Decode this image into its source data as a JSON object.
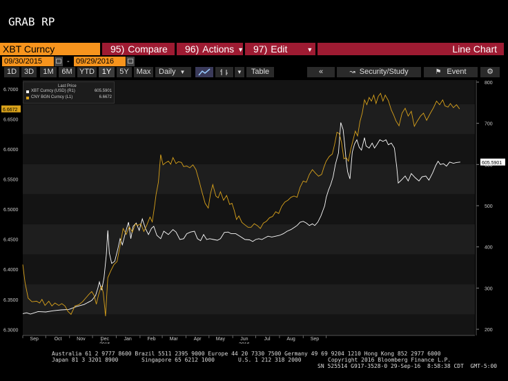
{
  "title": "GRAB RP",
  "command_bar": {
    "ticker": "XBT Curncy",
    "compare_num": "95)",
    "compare": "Compare",
    "actions_num": "96)",
    "actions": "Actions",
    "edit_num": "97)",
    "edit": "Edit",
    "chart_type": "Line Chart"
  },
  "dates": {
    "start": "09/30/2015",
    "separator": "-",
    "end": "09/29/2016"
  },
  "toolbar": {
    "periods": [
      "1D",
      "3D",
      "1M",
      "6M",
      "YTD",
      "1Y",
      "5Y",
      "Max"
    ],
    "selected_period": "1Y",
    "frequency": "Daily",
    "table": "Table",
    "security_study": "Security/Study",
    "event": "Event"
  },
  "legend": {
    "header": "Last Price",
    "series": [
      {
        "name": "XBT Curncy (USD)  (R1)",
        "value": "605.5901",
        "color": "#ffffff"
      },
      {
        "name": "CNY BGN Curncy  (L1)",
        "value": "6.6672",
        "color": "#d9a21b"
      }
    ]
  },
  "chart_data": {
    "type": "line",
    "x_months": [
      "Sep",
      "Oct",
      "Nov",
      "Dec",
      "Jan",
      "Feb",
      "Mar",
      "Apr",
      "May",
      "Jun",
      "Jul",
      "Aug",
      "Sep"
    ],
    "x_years": [
      "2015",
      "2016"
    ],
    "left_axis": {
      "ticks": [
        "6.3000",
        "6.3500",
        "6.4000",
        "6.4500",
        "6.5000",
        "6.5500",
        "6.6000",
        "6.6500",
        "6.7000"
      ],
      "ylim": [
        6.29,
        6.715
      ],
      "last_label": "6.6672"
    },
    "right_axis": {
      "ticks": [
        "200",
        "300",
        "400",
        "500",
        "600",
        "700",
        "800"
      ],
      "ylim": [
        185,
        805
      ],
      "last_label": "605.5901"
    },
    "series": [
      {
        "name": "XBT Curncy (USD)",
        "axis": "right",
        "color": "#ffffff",
        "values": [
          [
            0,
            238
          ],
          [
            5,
            240
          ],
          [
            10,
            237
          ],
          [
            20,
            243
          ],
          [
            30,
            242
          ],
          [
            40,
            245
          ],
          [
            50,
            247
          ],
          [
            60,
            248
          ],
          [
            70,
            255
          ],
          [
            80,
            260
          ],
          [
            90,
            270
          ],
          [
            95,
            282
          ],
          [
            98,
            300
          ],
          [
            100,
            315
          ],
          [
            103,
            295
          ],
          [
            106,
            325
          ],
          [
            109,
            380
          ],
          [
            111,
            440
          ],
          [
            113,
            385
          ],
          [
            116,
            360
          ],
          [
            120,
            365
          ],
          [
            124,
            395
          ],
          [
            127,
            420
          ],
          [
            130,
            405
          ],
          [
            134,
            435
          ],
          [
            138,
            460
          ],
          [
            141,
            420
          ],
          [
            144,
            450
          ],
          [
            148,
            458
          ],
          [
            152,
            440
          ],
          [
            156,
            468
          ],
          [
            160,
            445
          ],
          [
            164,
            430
          ],
          [
            168,
            445
          ],
          [
            171,
            450
          ],
          [
            175,
            428
          ],
          [
            180,
            420
          ],
          [
            184,
            438
          ],
          [
            190,
            430
          ],
          [
            196,
            442
          ],
          [
            200,
            436
          ],
          [
            205,
            418
          ],
          [
            210,
            420
          ],
          [
            214,
            432
          ],
          [
            219,
            436
          ],
          [
            224,
            438
          ],
          [
            228,
            420
          ],
          [
            232,
            415
          ],
          [
            236,
            430
          ],
          [
            240,
            418
          ],
          [
            244,
            420
          ],
          [
            249,
            418
          ],
          [
            254,
            416
          ],
          [
            258,
            420
          ],
          [
            263,
            435
          ],
          [
            268,
            436
          ],
          [
            272,
            432
          ],
          [
            278,
            432
          ],
          [
            284,
            425
          ],
          [
            290,
            418
          ],
          [
            296,
            417
          ],
          [
            300,
            413
          ],
          [
            304,
            418
          ],
          [
            308,
            420
          ],
          [
            312,
            418
          ],
          [
            316,
            422
          ],
          [
            320,
            426
          ],
          [
            325,
            424
          ],
          [
            330,
            426
          ],
          [
            335,
            428
          ],
          [
            340,
            432
          ],
          [
            345,
            438
          ],
          [
            350,
            442
          ],
          [
            355,
            448
          ],
          [
            358,
            452
          ],
          [
            362,
            460
          ],
          [
            366,
            462
          ],
          [
            370,
            458
          ],
          [
            374,
            452
          ],
          [
            378,
            456
          ],
          [
            381,
            452
          ],
          [
            385,
            460
          ],
          [
            389,
            475
          ],
          [
            392,
            490
          ],
          [
            394,
            500
          ],
          [
            396,
            520
          ],
          [
            399,
            538
          ],
          [
            402,
            552
          ],
          [
            405,
            570
          ],
          [
            408,
            600
          ],
          [
            412,
            628
          ],
          [
            415,
            702
          ],
          [
            418,
            685
          ],
          [
            420,
            650
          ],
          [
            422,
            610
          ],
          [
            424,
            582
          ],
          [
            427,
            565
          ],
          [
            430,
            630
          ],
          [
            433,
            650
          ],
          [
            436,
            660
          ],
          [
            439,
            642
          ],
          [
            442,
            635
          ],
          [
            446,
            665
          ],
          [
            448,
            645
          ],
          [
            452,
            640
          ],
          [
            456,
            652
          ],
          [
            459,
            640
          ],
          [
            462,
            648
          ],
          [
            466,
            660
          ],
          [
            470,
            656
          ],
          [
            474,
            660
          ],
          [
            477,
            648
          ],
          [
            481,
            652
          ],
          [
            485,
            640
          ],
          [
            488,
            594
          ],
          [
            490,
            555
          ],
          [
            494,
            562
          ],
          [
            499,
            572
          ],
          [
            503,
            560
          ],
          [
            507,
            578
          ],
          [
            512,
            568
          ],
          [
            517,
            560
          ],
          [
            521,
            570
          ],
          [
            526,
            572
          ],
          [
            530,
            562
          ],
          [
            535,
            580
          ],
          [
            539,
            598
          ],
          [
            542,
            608
          ],
          [
            545,
            600
          ],
          [
            549,
            602
          ],
          [
            553,
            596
          ],
          [
            557,
            606
          ],
          [
            562,
            603
          ],
          [
            566,
            605
          ],
          [
            571,
            606
          ]
        ]
      },
      {
        "name": "CNY BGN Curncy",
        "axis": "left",
        "color": "#d9a21b",
        "values": [
          [
            0,
            6.408
          ],
          [
            3,
            6.378
          ],
          [
            7,
            6.352
          ],
          [
            12,
            6.346
          ],
          [
            18,
            6.347
          ],
          [
            22,
            6.344
          ],
          [
            25,
            6.35
          ],
          [
            29,
            6.34
          ],
          [
            34,
            6.347
          ],
          [
            38,
            6.339
          ],
          [
            42,
            6.344
          ],
          [
            47,
            6.34
          ],
          [
            51,
            6.343
          ],
          [
            55,
            6.339
          ],
          [
            59,
            6.33
          ],
          [
            63,
            6.325
          ],
          [
            68,
            6.339
          ],
          [
            73,
            6.341
          ],
          [
            78,
            6.346
          ],
          [
            82,
            6.352
          ],
          [
            86,
            6.358
          ],
          [
            90,
            6.363
          ],
          [
            93,
            6.357
          ],
          [
            96,
            6.342
          ],
          [
            99,
            6.358
          ],
          [
            101,
            6.366
          ],
          [
            103,
            6.372
          ],
          [
            105,
            6.361
          ],
          [
            108,
            6.322
          ],
          [
            111,
            6.386
          ],
          [
            115,
            6.398
          ],
          [
            119,
            6.408
          ],
          [
            123,
            6.413
          ],
          [
            127,
            6.44
          ],
          [
            131,
            6.468
          ],
          [
            135,
            6.458
          ],
          [
            139,
            6.471
          ],
          [
            143,
            6.462
          ],
          [
            147,
            6.476
          ],
          [
            150,
            6.473
          ],
          [
            154,
            6.476
          ],
          [
            158,
            6.463
          ],
          [
            162,
            6.474
          ],
          [
            166,
            6.487
          ],
          [
            169,
            6.479
          ],
          [
            172,
            6.505
          ],
          [
            174,
            6.525
          ],
          [
            177,
            6.545
          ],
          [
            180,
            6.591
          ],
          [
            183,
            6.574
          ],
          [
            186,
            6.577
          ],
          [
            190,
            6.58
          ],
          [
            193,
            6.575
          ],
          [
            196,
            6.586
          ],
          [
            200,
            6.576
          ],
          [
            203,
            6.579
          ],
          [
            207,
            6.578
          ],
          [
            210,
            6.571
          ],
          [
            214,
            6.572
          ],
          [
            218,
            6.569
          ],
          [
            222,
            6.574
          ],
          [
            226,
            6.566
          ],
          [
            230,
            6.548
          ],
          [
            234,
            6.528
          ],
          [
            238,
            6.51
          ],
          [
            242,
            6.502
          ],
          [
            245,
            6.526
          ],
          [
            248,
            6.541
          ],
          [
            252,
            6.522
          ],
          [
            255,
            6.519
          ],
          [
            258,
            6.529
          ],
          [
            262,
            6.515
          ],
          [
            266,
            6.523
          ],
          [
            270,
            6.508
          ],
          [
            273,
            6.51
          ],
          [
            276,
            6.498
          ],
          [
            279,
            6.483
          ],
          [
            282,
            6.489
          ],
          [
            286,
            6.478
          ],
          [
            290,
            6.474
          ],
          [
            294,
            6.47
          ],
          [
            298,
            6.47
          ],
          [
            302,
            6.476
          ],
          [
            306,
            6.473
          ],
          [
            310,
            6.468
          ],
          [
            314,
            6.477
          ],
          [
            318,
            6.48
          ],
          [
            322,
            6.486
          ],
          [
            326,
            6.488
          ],
          [
            330,
            6.496
          ],
          [
            334,
            6.493
          ],
          [
            338,
            6.505
          ],
          [
            342,
            6.512
          ],
          [
            346,
            6.515
          ],
          [
            350,
            6.52
          ],
          [
            354,
            6.522
          ],
          [
            358,
            6.52
          ],
          [
            362,
            6.537
          ],
          [
            366,
            6.547
          ],
          [
            370,
            6.545
          ],
          [
            374,
            6.558
          ],
          [
            378,
            6.566
          ],
          [
            382,
            6.56
          ],
          [
            386,
            6.555
          ],
          [
            390,
            6.558
          ],
          [
            393,
            6.57
          ],
          [
            396,
            6.58
          ],
          [
            400,
            6.588
          ],
          [
            404,
            6.592
          ],
          [
            407,
            6.608
          ],
          [
            410,
            6.628
          ],
          [
            413,
            6.626
          ],
          [
            416,
            6.611
          ],
          [
            419,
            6.584
          ],
          [
            422,
            6.586
          ],
          [
            425,
            6.58
          ],
          [
            428,
            6.6
          ],
          [
            431,
            6.615
          ],
          [
            434,
            6.63
          ],
          [
            437,
            6.622
          ],
          [
            440,
            6.646
          ],
          [
            443,
            6.66
          ],
          [
            446,
            6.682
          ],
          [
            449,
            6.674
          ],
          [
            452,
            6.686
          ],
          [
            455,
            6.68
          ],
          [
            458,
            6.69
          ],
          [
            461,
            6.676
          ],
          [
            464,
            6.688
          ],
          [
            467,
            6.693
          ],
          [
            470,
            6.68
          ],
          [
            473,
            6.69
          ],
          [
            477,
            6.681
          ],
          [
            481,
            6.665
          ],
          [
            484,
            6.657
          ],
          [
            487,
            6.647
          ],
          [
            491,
            6.639
          ],
          [
            495,
            6.66
          ],
          [
            499,
            6.668
          ],
          [
            503,
            6.655
          ],
          [
            507,
            6.663
          ],
          [
            511,
            6.638
          ],
          [
            515,
            6.647
          ],
          [
            519,
            6.655
          ],
          [
            523,
            6.66
          ],
          [
            527,
            6.648
          ],
          [
            532,
            6.66
          ],
          [
            536,
            6.669
          ],
          [
            540,
            6.68
          ],
          [
            544,
            6.674
          ],
          [
            548,
            6.682
          ],
          [
            551,
            6.672
          ],
          [
            555,
            6.67
          ],
          [
            558,
            6.676
          ],
          [
            562,
            6.669
          ],
          [
            566,
            6.674
          ],
          [
            570,
            6.667
          ]
        ]
      }
    ]
  },
  "footer": {
    "line1": "Australia 61 2 9777 8600 Brazil 5511 2395 9000 Europe 44 20 7330 7500 Germany 49 69 9204 1210 Hong Kong 852 2977 6000",
    "line2a": "Japan 81 3 3201 8900",
    "line2b": "Singapore 65 6212 1000",
    "line2c": "U.S. 1 212 318 2000",
    "line2d": "Copyright 2016 Bloomberg Finance L.P.",
    "line3": "SN 525514 G917-3528-0 29-Sep-16  8:58:38 CDT  GMT-5:00"
  }
}
